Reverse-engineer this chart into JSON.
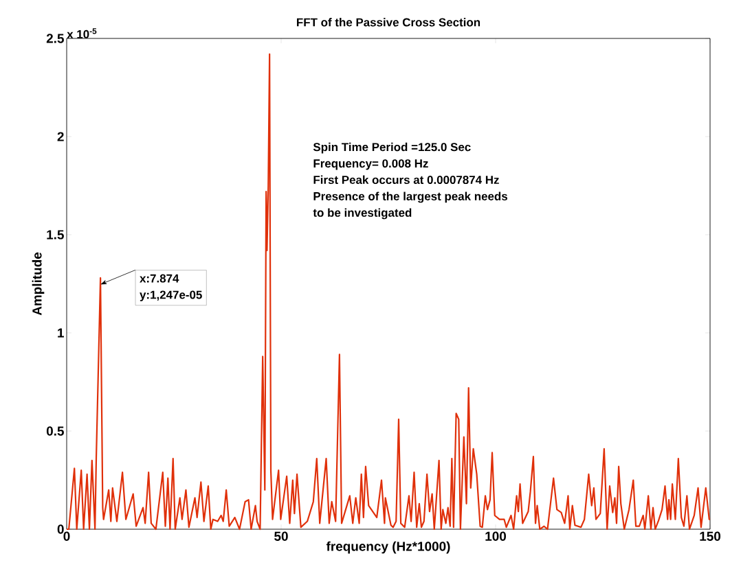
{
  "chart_data": {
    "type": "line",
    "title": "FFT of the Passive Cross Section",
    "xlabel": "frequency (Hz*1000)",
    "ylabel": "Amplitude",
    "xlim": [
      0,
      150
    ],
    "ylim": [
      0,
      2.5
    ],
    "xticks": [
      0,
      50,
      100,
      150
    ],
    "yticks": [
      0,
      0.5,
      1,
      1.5,
      2,
      2.5
    ],
    "line_style": "solid",
    "series": [
      {
        "color": "#e0300a",
        "x": [
          0,
          0.5,
          1.8,
          2.35,
          3.4,
          3.95,
          4.75,
          5.3,
          5.9,
          6.6,
          6.9,
          7.874,
          8.4,
          8.6,
          9.8,
          10.3,
          10.7,
          11.7,
          13.0,
          13.8,
          15.5,
          16.2,
          17.8,
          18.3,
          19.1,
          19.7,
          20.8,
          22.4,
          23.0,
          23.6,
          24.1,
          24.8,
          25.3,
          26.4,
          26.9,
          27.8,
          28.5,
          29.9,
          30.4,
          31.3,
          32.0,
          33.0,
          33.6,
          34.1,
          35.2,
          36.0,
          36.5,
          37.2,
          37.9,
          39.2,
          40.3,
          41.6,
          42.4,
          43.0,
          44.0,
          44.4,
          45.1,
          45.7,
          46.2,
          46.5,
          46.7,
          47.0,
          47.3,
          47.6,
          48.0,
          49.4,
          49.9,
          51.3,
          52.0,
          52.7,
          53.1,
          53.7,
          54.6,
          56.1,
          57.5,
          58.3,
          59.0,
          60.5,
          61.2,
          61.8,
          62.7,
          63.6,
          64.1,
          66.0,
          66.7,
          67.4,
          68.2,
          68.7,
          69.2,
          69.7,
          70.4,
          72.3,
          73.4,
          74.1,
          74.3,
          75.6,
          76.1,
          76.8,
          77.4,
          77.9,
          78.8,
          79.8,
          80.3,
          81.0,
          81.6,
          82.2,
          82.7,
          83.3,
          84.0,
          84.6,
          85.2,
          85.7,
          86.8,
          87.3,
          87.7,
          88.4,
          88.9,
          89.4,
          89.8,
          90.2,
          90.8,
          91.4,
          91.8,
          92.6,
          93.2,
          93.7,
          94.2,
          94.8,
          95.6,
          96.4,
          96.9,
          97.6,
          98.1,
          98.7,
          99.2,
          99.8,
          100.9,
          102.0,
          102.5,
          103.6,
          104.2,
          104.9,
          105.3,
          105.7,
          106.3,
          107.6,
          108.1,
          108.8,
          109.3,
          109.7,
          110.3,
          111.3,
          112.1,
          113.5,
          114.3,
          115.3,
          116.1,
          116.9,
          117.3,
          117.9,
          118.5,
          119.9,
          120.7,
          121.7,
          122.4,
          122.9,
          123.4,
          124.4,
          125.3,
          126.0,
          126.6,
          127.3,
          127.8,
          128.2,
          128.7,
          129.2,
          130.0,
          131.1,
          132.1,
          132.7,
          133.5,
          134.4,
          134.8,
          135.6,
          136.2,
          136.7,
          137.2,
          138.0,
          138.8,
          139.5,
          140.1,
          140.4,
          140.8,
          141.2,
          141.9,
          142.6,
          143.3,
          143.9,
          144.6,
          145.2,
          146.3,
          147.2,
          147.9,
          149.0,
          149.8,
          150
        ],
        "values": [
          0,
          0,
          0.31,
          0,
          0.3,
          0,
          0.28,
          0,
          0.35,
          0,
          0.37,
          1.28,
          0.11,
          0.05,
          0.2,
          0.04,
          0.21,
          0.04,
          0.29,
          0.05,
          0.18,
          0.015,
          0.11,
          0.03,
          0.29,
          0.03,
          0,
          0.29,
          0.015,
          0.26,
          0,
          0.36,
          0,
          0.16,
          0.05,
          0.2,
          0.01,
          0.16,
          0.06,
          0.24,
          0.04,
          0.22,
          0,
          0.05,
          0.04,
          0.07,
          0.04,
          0.2,
          0.015,
          0.06,
          0,
          0.14,
          0.15,
          0,
          0.12,
          0.04,
          0,
          0.88,
          0.2,
          1.72,
          1.42,
          1.75,
          2.42,
          0.3,
          0.05,
          0.3,
          0.05,
          0.27,
          0.03,
          0.25,
          0.08,
          0.28,
          0.01,
          0.04,
          0.14,
          0.36,
          0.03,
          0.36,
          0.03,
          0.14,
          0.04,
          0.89,
          0.03,
          0.17,
          0.03,
          0.16,
          0.03,
          0.28,
          0.06,
          0.32,
          0.12,
          0.06,
          0.25,
          0.03,
          0.16,
          0.02,
          0.01,
          0.04,
          0.56,
          0.03,
          0.01,
          0.17,
          0.04,
          0.29,
          0.01,
          0.13,
          0.01,
          0.04,
          0.28,
          0.09,
          0.18,
          0,
          0.35,
          0,
          0.1,
          0.03,
          0.11,
          0.015,
          0.36,
          0.01,
          0.59,
          0.56,
          0,
          0.47,
          0.13,
          0.72,
          0.21,
          0.41,
          0.28,
          0.015,
          0.01,
          0.17,
          0.1,
          0.15,
          0.39,
          0.07,
          0.05,
          0.05,
          0.01,
          0.07,
          0,
          0.17,
          0.09,
          0.23,
          0.03,
          0.09,
          0.19,
          0.37,
          0.03,
          0.12,
          0,
          0.015,
          0,
          0.26,
          0.1,
          0.085,
          0.03,
          0.17,
          0,
          0.12,
          0.02,
          0.01,
          0.05,
          0.28,
          0.12,
          0.21,
          0.05,
          0.08,
          0.41,
          0,
          0.22,
          0.085,
          0.16,
          0.03,
          0.32,
          0.13,
          0,
          0.1,
          0.25,
          0.015,
          0.015,
          0.07,
          0,
          0.17,
          0,
          0.11,
          0,
          0.045,
          0.1,
          0.22,
          0.05,
          0.15,
          0.05,
          0.23,
          0.05,
          0.36,
          0.06,
          0.015,
          0.17,
          0,
          0.07,
          0.21,
          0.01,
          0.21,
          0.05,
          0.05
        ]
      }
    ],
    "annotations": [
      "x 10$^{-5}$",
      "Spin Time Period =125.0  Sec",
      "Frequency= 0.008  Hz",
      "First  Peak occurs at 0.0007874 Hz",
      "Presence of the largest peak needs",
      "to be  investigated",
      {
        "text": "x:7.874",
        "x": 7.874,
        "y": 1.247
      },
      "y:1,247e-05"
    ]
  }
}
